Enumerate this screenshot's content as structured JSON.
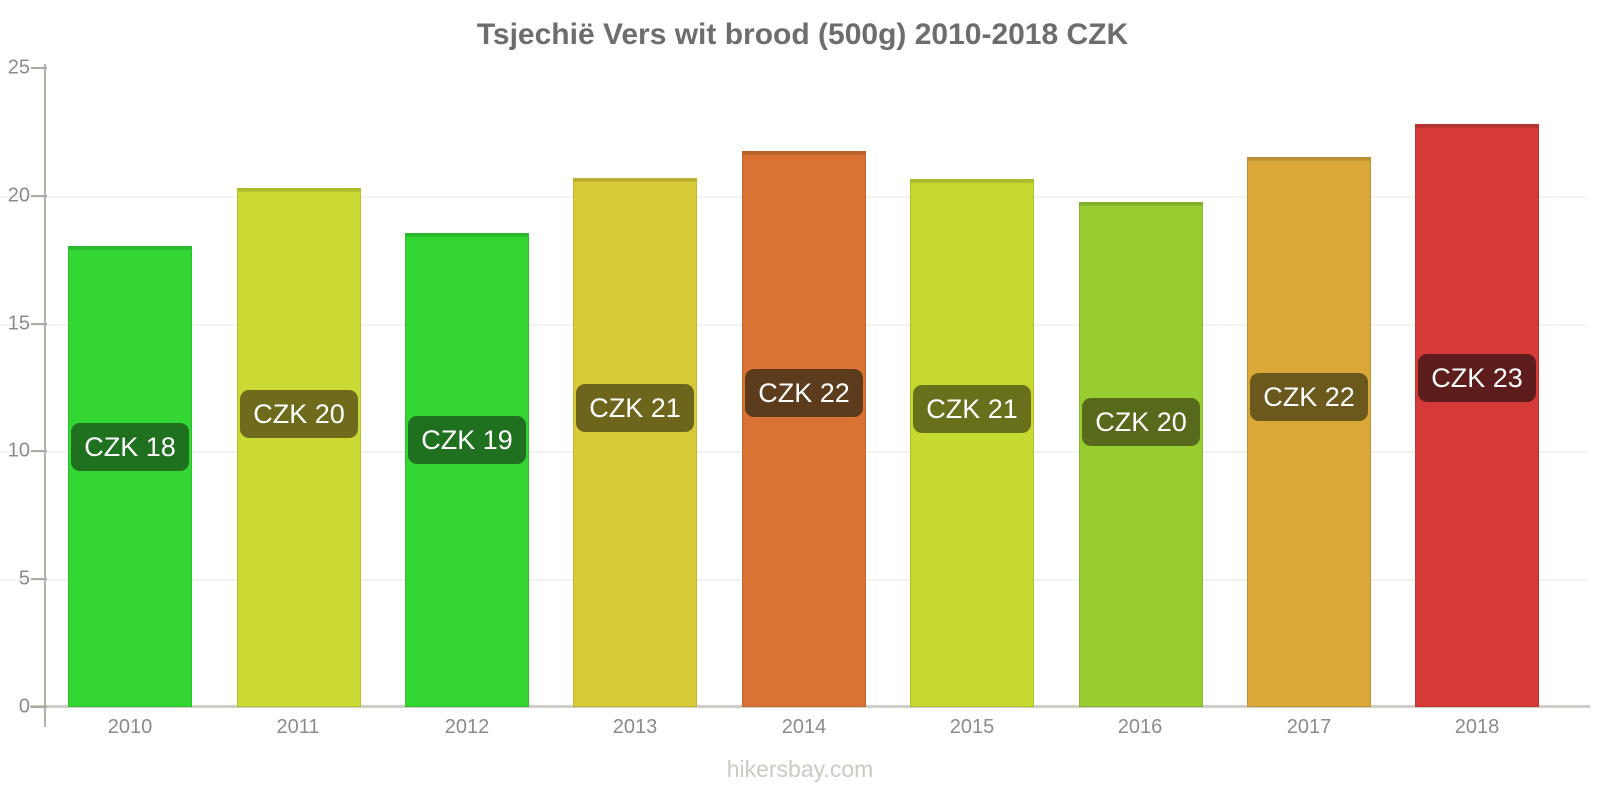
{
  "title": "Tsjechië Vers wit brood (500g) 2010-2018 CZK",
  "footer": "hikersbay.com",
  "chart_data": {
    "type": "bar",
    "title": "Tsjechië Vers wit brood (500g) 2010-2018 CZK",
    "categories": [
      "2010",
      "2011",
      "2012",
      "2013",
      "2014",
      "2015",
      "2016",
      "2017",
      "2018"
    ],
    "values": [
      18.05,
      20.3,
      18.55,
      20.7,
      21.75,
      20.65,
      19.75,
      21.5,
      22.8
    ],
    "bar_labels": [
      "CZK 18",
      "CZK 20",
      "CZK 19",
      "CZK 21",
      "CZK 22",
      "CZK 21",
      "CZK 20",
      "CZK 22",
      "CZK 23"
    ],
    "bar_colors": [
      "#33d633",
      "#cbd934",
      "#33d633",
      "#d9cb38",
      "#d97333",
      "#c6d931",
      "#98cd32",
      "#d9a838",
      "#d63a38"
    ],
    "badge_colors": [
      "#1f711f",
      "#6e6c1c",
      "#1f711f",
      "#6e651c",
      "#5d3b1d",
      "#68701b",
      "#57691a",
      "#6b581c",
      "#5e1d1d"
    ],
    "badge_text_color": "#ffffff",
    "xlabel": "",
    "ylabel": "",
    "ylim": [
      0,
      25
    ],
    "yticks": [
      0,
      5,
      10,
      15,
      20,
      25
    ],
    "grid": "horizontal-faint",
    "legend": "none",
    "currency": "CZK"
  }
}
